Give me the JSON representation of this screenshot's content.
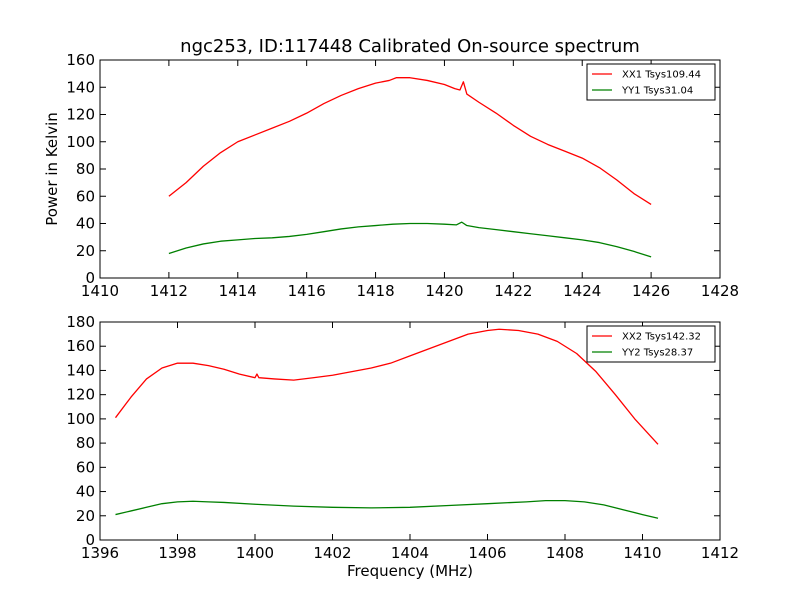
{
  "chart_data": [
    {
      "type": "line",
      "title": "ngc253, ID:117448 Calibrated On-source spectrum",
      "xlabel": "",
      "ylabel": "Power in Kelvin",
      "xlim": [
        1410,
        1428
      ],
      "ylim": [
        0,
        160
      ],
      "xticks": [
        "1410",
        "1412",
        "1414",
        "1416",
        "1418",
        "1420",
        "1422",
        "1424",
        "1426",
        "1428"
      ],
      "yticks": [
        "0",
        "20",
        "40",
        "60",
        "80",
        "100",
        "120",
        "140",
        "160"
      ],
      "legend_position": "top-right",
      "series": [
        {
          "name": "XX1 Tsys109.44",
          "color": "#ff0000",
          "points": [
            [
              1412.0,
              60
            ],
            [
              1412.5,
              70
            ],
            [
              1413.0,
              82
            ],
            [
              1413.5,
              92
            ],
            [
              1414.0,
              100
            ],
            [
              1414.5,
              105
            ],
            [
              1415.0,
              110
            ],
            [
              1415.5,
              115
            ],
            [
              1416.0,
              121
            ],
            [
              1416.5,
              128
            ],
            [
              1417.0,
              134
            ],
            [
              1417.5,
              139
            ],
            [
              1418.0,
              143
            ],
            [
              1418.4,
              145
            ],
            [
              1418.6,
              147
            ],
            [
              1419.0,
              147
            ],
            [
              1419.5,
              145
            ],
            [
              1420.0,
              142
            ],
            [
              1420.3,
              139
            ],
            [
              1420.45,
              138
            ],
            [
              1420.55,
              144
            ],
            [
              1420.65,
              135
            ],
            [
              1421.0,
              129
            ],
            [
              1421.5,
              121
            ],
            [
              1422.0,
              112
            ],
            [
              1422.5,
              104
            ],
            [
              1423.0,
              98
            ],
            [
              1423.5,
              93
            ],
            [
              1424.0,
              88
            ],
            [
              1424.5,
              81
            ],
            [
              1425.0,
              72
            ],
            [
              1425.5,
              62
            ],
            [
              1426.0,
              54
            ]
          ]
        },
        {
          "name": "YY1 Tsys31.04",
          "color": "#008000",
          "points": [
            [
              1412.0,
              18
            ],
            [
              1412.5,
              22
            ],
            [
              1413.0,
              25
            ],
            [
              1413.5,
              27
            ],
            [
              1414.0,
              28
            ],
            [
              1414.5,
              29
            ],
            [
              1415.0,
              29.5
            ],
            [
              1415.5,
              30.5
            ],
            [
              1416.0,
              32
            ],
            [
              1416.5,
              34
            ],
            [
              1417.0,
              36
            ],
            [
              1417.5,
              37.5
            ],
            [
              1418.0,
              38.5
            ],
            [
              1418.5,
              39.5
            ],
            [
              1419.0,
              40
            ],
            [
              1419.5,
              40
            ],
            [
              1420.0,
              39.5
            ],
            [
              1420.35,
              39
            ],
            [
              1420.5,
              41
            ],
            [
              1420.65,
              38.5
            ],
            [
              1421.0,
              37
            ],
            [
              1421.5,
              35.5
            ],
            [
              1422.0,
              34
            ],
            [
              1422.5,
              32.5
            ],
            [
              1423.0,
              31
            ],
            [
              1423.5,
              29.5
            ],
            [
              1424.0,
              28
            ],
            [
              1424.5,
              26
            ],
            [
              1425.0,
              23
            ],
            [
              1425.5,
              19.5
            ],
            [
              1426.0,
              15.5
            ]
          ]
        }
      ]
    },
    {
      "type": "line",
      "title": "",
      "xlabel": "Frequency (MHz)",
      "ylabel": "",
      "xlim": [
        1396,
        1412
      ],
      "ylim": [
        0,
        180
      ],
      "xticks": [
        "1396",
        "1398",
        "1400",
        "1402",
        "1404",
        "1406",
        "1408",
        "1410",
        "1412"
      ],
      "yticks": [
        "0",
        "20",
        "40",
        "60",
        "80",
        "100",
        "120",
        "140",
        "160",
        "180"
      ],
      "legend_position": "top-right",
      "series": [
        {
          "name": "XX2 Tsys142.32",
          "color": "#ff0000",
          "points": [
            [
              1396.4,
              101
            ],
            [
              1396.8,
              118
            ],
            [
              1397.2,
              133
            ],
            [
              1397.6,
              142
            ],
            [
              1398.0,
              146
            ],
            [
              1398.4,
              146
            ],
            [
              1398.8,
              144
            ],
            [
              1399.2,
              141
            ],
            [
              1399.6,
              137
            ],
            [
              1400.0,
              134
            ],
            [
              1400.05,
              137
            ],
            [
              1400.1,
              134
            ],
            [
              1400.5,
              133
            ],
            [
              1401.0,
              132
            ],
            [
              1401.5,
              134
            ],
            [
              1402.0,
              136
            ],
            [
              1402.5,
              139
            ],
            [
              1403.0,
              142
            ],
            [
              1403.5,
              146
            ],
            [
              1404.0,
              152
            ],
            [
              1404.5,
              158
            ],
            [
              1405.0,
              164
            ],
            [
              1405.5,
              170
            ],
            [
              1406.0,
              173
            ],
            [
              1406.3,
              174
            ],
            [
              1406.8,
              173
            ],
            [
              1407.3,
              170
            ],
            [
              1407.8,
              164
            ],
            [
              1408.3,
              154
            ],
            [
              1408.8,
              139
            ],
            [
              1409.3,
              120
            ],
            [
              1409.8,
              100
            ],
            [
              1410.4,
              79
            ]
          ]
        },
        {
          "name": "YY2 Tsys28.37",
          "color": "#008000",
          "points": [
            [
              1396.4,
              21
            ],
            [
              1396.8,
              24
            ],
            [
              1397.2,
              27
            ],
            [
              1397.6,
              30
            ],
            [
              1398.0,
              31.5
            ],
            [
              1398.4,
              32
            ],
            [
              1398.8,
              31.5
            ],
            [
              1399.2,
              31
            ],
            [
              1400.0,
              29.5
            ],
            [
              1401.0,
              28
            ],
            [
              1402.0,
              27
            ],
            [
              1403.0,
              26.5
            ],
            [
              1404.0,
              27
            ],
            [
              1405.0,
              28.5
            ],
            [
              1406.0,
              30
            ],
            [
              1407.0,
              31.5
            ],
            [
              1407.5,
              32.5
            ],
            [
              1408.0,
              32.5
            ],
            [
              1408.5,
              31.5
            ],
            [
              1409.0,
              29
            ],
            [
              1409.5,
              25
            ],
            [
              1410.0,
              21
            ],
            [
              1410.4,
              18
            ]
          ]
        }
      ]
    }
  ]
}
